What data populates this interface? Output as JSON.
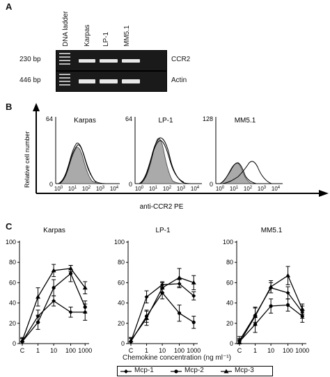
{
  "panel_a": {
    "letter": "A",
    "lanes": [
      "DNA ladder",
      "Karpas",
      "LP-1",
      "MM5.1"
    ],
    "rows": [
      {
        "size": "230 bp",
        "gene": "CCR2"
      },
      {
        "size": "446 bp",
        "gene": "Actin"
      }
    ]
  },
  "panel_b": {
    "letter": "B",
    "y_axis_label": "Relative cell number",
    "x_axis_label": "anti-CCR2 PE",
    "x_ticks": [
      "10",
      "10",
      "10",
      "10",
      "10"
    ],
    "x_tick_exps": [
      "0",
      "1",
      "2",
      "3",
      "4"
    ],
    "plots": [
      {
        "name": "Karpas",
        "ymax": "64",
        "ymin": "0"
      },
      {
        "name": "LP-1",
        "ymax": "64",
        "ymin": "0"
      },
      {
        "name": "MM5.1",
        "ymax": "128",
        "ymin": "0"
      }
    ]
  },
  "panel_c": {
    "letter": "C",
    "x_label": "Chemokine concentration (ng ml⁻¹)",
    "legend": [
      "Mcp-1",
      "Mcp-2",
      "Mcp-3"
    ]
  },
  "chart_data": [
    {
      "type": "line",
      "title": "Karpas",
      "categories": [
        "C",
        "1",
        "10",
        "100",
        "1000"
      ],
      "ylim": [
        0,
        100
      ],
      "yticks": [
        "0",
        "20",
        "40",
        "60",
        "80",
        "100"
      ],
      "series": [
        {
          "name": "Mcp-1",
          "values": [
            2,
            27,
            42,
            31,
            31
          ],
          "err": [
            3,
            6,
            5,
            5,
            8
          ]
        },
        {
          "name": "Mcp-2",
          "values": [
            2,
            21,
            55,
            69,
            36
          ],
          "err": [
            3,
            7,
            8,
            8,
            6
          ]
        },
        {
          "name": "Mcp-3",
          "values": [
            3,
            46,
            72,
            74,
            55
          ],
          "err": [
            3,
            9,
            6,
            3,
            6
          ]
        }
      ]
    },
    {
      "type": "line",
      "title": "LP-1",
      "categories": [
        "C",
        "1",
        "10",
        "100",
        "1000"
      ],
      "ylim": [
        0,
        100
      ],
      "yticks": [
        "0",
        "20",
        "40",
        "60",
        "80",
        "100"
      ],
      "series": [
        {
          "name": "Mcp-1",
          "values": [
            2,
            46,
            58,
            59,
            47
          ],
          "err": [
            3,
            6,
            3,
            4,
            4
          ]
        },
        {
          "name": "Mcp-2",
          "values": [
            2,
            27,
            50,
            30,
            21
          ],
          "err": [
            4,
            6,
            6,
            8,
            6
          ]
        },
        {
          "name": "Mcp-3",
          "values": [
            3,
            25,
            55,
            65,
            60
          ],
          "err": [
            3,
            7,
            5,
            9,
            7
          ]
        }
      ]
    },
    {
      "type": "line",
      "title": "MM5.1",
      "categories": [
        "C",
        "1",
        "10",
        "100",
        "1000"
      ],
      "ylim": [
        0,
        100
      ],
      "yticks": [
        "0",
        "20",
        "40",
        "60",
        "80",
        "100"
      ],
      "series": [
        {
          "name": "Mcp-1",
          "values": [
            3,
            28,
            55,
            50,
            31
          ],
          "err": [
            4,
            7,
            5,
            6,
            6
          ]
        },
        {
          "name": "Mcp-2",
          "values": [
            2,
            19,
            37,
            38,
            27
          ],
          "err": [
            3,
            8,
            7,
            6,
            6
          ]
        },
        {
          "name": "Mcp-3",
          "values": [
            1,
            27,
            56,
            67,
            34
          ],
          "err": [
            3,
            9,
            6,
            9,
            5
          ]
        }
      ]
    }
  ]
}
